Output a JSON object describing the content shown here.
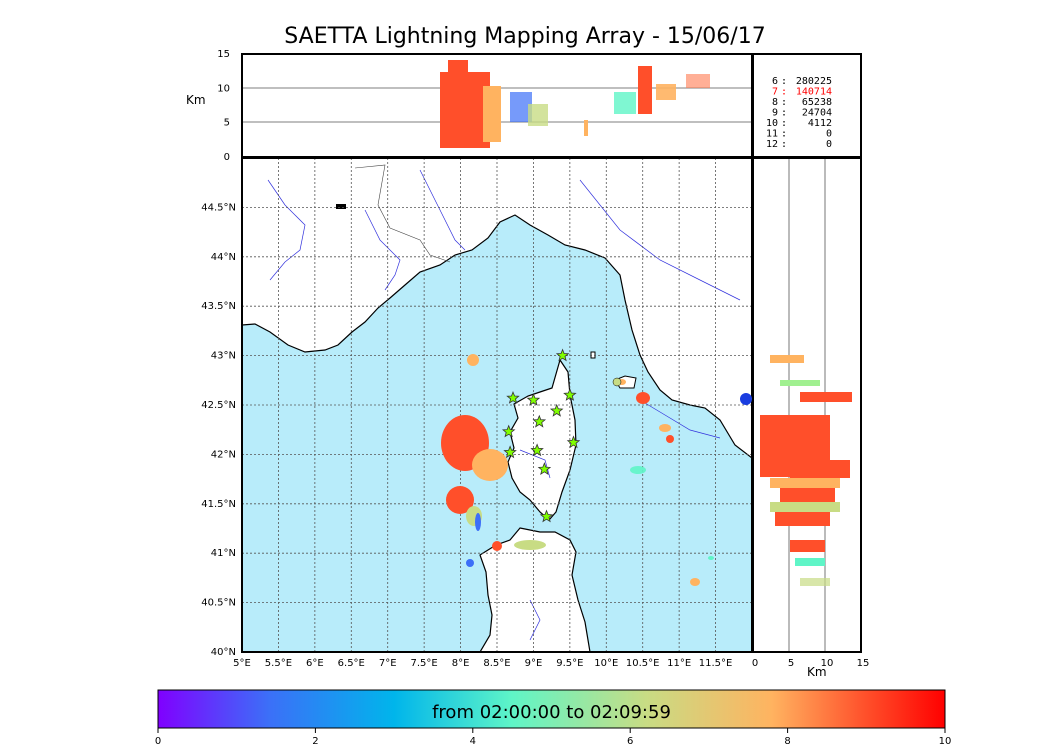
{
  "title": "SAETTA Lightning Mapping Array - 15/06/17",
  "map": {
    "lon_ticks": [
      "5°E",
      "5.5°E",
      "6°E",
      "6.5°E",
      "7°E",
      "7.5°E",
      "8°E",
      "8.5°E",
      "9°E",
      "9.5°E",
      "10°E",
      "10.5°E",
      "11°E",
      "11.5°E"
    ],
    "lat_ticks": [
      "40°N",
      "40.5°N",
      "41°N",
      "41.5°N",
      "42°N",
      "42.5°N",
      "43°N",
      "43.5°N",
      "44°N",
      "44.5°N"
    ],
    "lon_range": [
      5,
      12
    ],
    "lat_range": [
      40,
      45
    ],
    "sea_color": "#b8ecfa",
    "land_color": "#ffffff",
    "river_color": "#3333dd",
    "station_marker": "star-icon",
    "station_color": "#80ff00"
  },
  "altitude_panel": {
    "label": "Km",
    "ticks": [
      "0",
      "5",
      "10",
      "15"
    ],
    "range": [
      0,
      15
    ],
    "gridlines": [
      5,
      10
    ]
  },
  "right_panel": {
    "label": "Km",
    "ticks": [
      "0",
      "5",
      "10",
      "15"
    ],
    "range": [
      0,
      15
    ],
    "gridlines": [
      5,
      10
    ]
  },
  "stats": [
    {
      "n": "6",
      "sep": ":",
      "count": "280225",
      "highlight": false
    },
    {
      "n": "7",
      "sep": ":",
      "count": "140714",
      "highlight": true
    },
    {
      "n": "8",
      "sep": ":",
      "count": "65238",
      "highlight": false
    },
    {
      "n": "9",
      "sep": ":",
      "count": "24704",
      "highlight": false
    },
    {
      "n": "10",
      "sep": ":",
      "count": "4112",
      "highlight": false
    },
    {
      "n": "11",
      "sep": ":",
      "count": "0",
      "highlight": false
    },
    {
      "n": "12",
      "sep": ":",
      "count": "0",
      "highlight": false
    }
  ],
  "colorbar": {
    "label": "from 02:00:00 to 02:09:59",
    "ticks": [
      "0",
      "2",
      "4",
      "6",
      "8",
      "10"
    ],
    "range": [
      0,
      10
    ],
    "colors": [
      "#8000ff",
      "#3c6ff8",
      "#00b5eb",
      "#5ff5c7",
      "#c8dc84",
      "#ffb360",
      "#ff4f2a",
      "#ff0000"
    ]
  }
}
